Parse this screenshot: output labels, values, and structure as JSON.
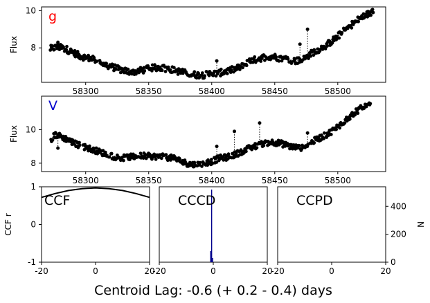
{
  "figure": {
    "footer": "Centroid Lag:  -0.6 (+  0.2 -  0.4) days"
  },
  "colors": {
    "g_label": "#ff0000",
    "v_label": "#0000cc",
    "points": "#000000",
    "cccd_hist": "#00008b"
  },
  "chart_data": [
    {
      "type": "scatter",
      "panel_label": "g",
      "xlabel": "",
      "ylabel": "Flux",
      "xlim": [
        58265,
        58538
      ],
      "ylim": [
        6.15,
        10.2
      ],
      "xticks": [
        58300,
        58350,
        58400,
        58450,
        58500
      ],
      "yticks": [
        8,
        10
      ],
      "connected": true,
      "curve": [
        [
          58272,
          7.95
        ],
        [
          58278,
          8.05
        ],
        [
          58284,
          7.95
        ],
        [
          58290,
          7.75
        ],
        [
          58296,
          7.55
        ],
        [
          58302,
          7.45
        ],
        [
          58308,
          7.35
        ],
        [
          58314,
          7.15
        ],
        [
          58320,
          7.0
        ],
        [
          58326,
          6.85
        ],
        [
          58332,
          6.75
        ],
        [
          58338,
          6.7
        ],
        [
          58345,
          6.8
        ],
        [
          58352,
          6.9
        ],
        [
          58358,
          6.95
        ],
        [
          58364,
          6.9
        ],
        [
          58370,
          6.8
        ],
        [
          58376,
          6.7
        ],
        [
          58382,
          6.6
        ],
        [
          58388,
          6.55
        ],
        [
          58394,
          6.55
        ],
        [
          58400,
          6.6
        ],
        [
          58406,
          6.65
        ],
        [
          58412,
          6.75
        ],
        [
          58418,
          6.85
        ],
        [
          58424,
          7.0
        ],
        [
          58430,
          7.25
        ],
        [
          58436,
          7.4
        ],
        [
          58442,
          7.5
        ],
        [
          58448,
          7.55
        ],
        [
          58454,
          7.45
        ],
        [
          58460,
          7.4
        ],
        [
          58466,
          7.3
        ],
        [
          58472,
          7.35
        ],
        [
          58476,
          7.55
        ],
        [
          58480,
          7.75
        ],
        [
          58486,
          7.95
        ],
        [
          58492,
          8.2
        ],
        [
          58498,
          8.5
        ],
        [
          58504,
          8.85
        ],
        [
          58510,
          9.2
        ],
        [
          58516,
          9.5
        ],
        [
          58522,
          9.75
        ],
        [
          58528,
          9.95
        ]
      ],
      "spikes": [
        [
          58278,
          8.3
        ],
        [
          58404,
          7.3
        ],
        [
          58470,
          8.2
        ],
        [
          58476,
          9.0
        ],
        [
          58528,
          9.9
        ]
      ]
    },
    {
      "type": "scatter",
      "panel_label": "V",
      "xlabel": "",
      "ylabel": "Flux",
      "xlim": [
        58265,
        58538
      ],
      "ylim": [
        7.5,
        12.0
      ],
      "xticks": [
        58300,
        58350,
        58400,
        58450,
        58500
      ],
      "yticks": [
        8,
        10
      ],
      "connected": true,
      "curve": [
        [
          58272,
          9.4
        ],
        [
          58276,
          9.7
        ],
        [
          58280,
          9.6
        ],
        [
          58286,
          9.4
        ],
        [
          58292,
          9.15
        ],
        [
          58298,
          9.0
        ],
        [
          58304,
          8.85
        ],
        [
          58310,
          8.7
        ],
        [
          58316,
          8.55
        ],
        [
          58322,
          8.4
        ],
        [
          58328,
          8.3
        ],
        [
          58334,
          8.35
        ],
        [
          58340,
          8.4
        ],
        [
          58346,
          8.45
        ],
        [
          58352,
          8.4
        ],
        [
          58358,
          8.4
        ],
        [
          58364,
          8.35
        ],
        [
          58370,
          8.3
        ],
        [
          58376,
          8.1
        ],
        [
          58382,
          7.95
        ],
        [
          58388,
          7.9
        ],
        [
          58394,
          8.0
        ],
        [
          58400,
          8.1
        ],
        [
          58406,
          8.3
        ],
        [
          58412,
          8.35
        ],
        [
          58418,
          8.5
        ],
        [
          58424,
          8.7
        ],
        [
          58430,
          8.9
        ],
        [
          58436,
          9.05
        ],
        [
          58442,
          9.2
        ],
        [
          58448,
          9.25
        ],
        [
          58454,
          9.2
        ],
        [
          58460,
          9.05
        ],
        [
          58466,
          8.95
        ],
        [
          58472,
          8.9
        ],
        [
          58478,
          9.2
        ],
        [
          58484,
          9.45
        ],
        [
          58490,
          9.65
        ],
        [
          58496,
          9.95
        ],
        [
          58502,
          10.3
        ],
        [
          58508,
          10.7
        ],
        [
          58514,
          11.05
        ],
        [
          58520,
          11.35
        ],
        [
          58526,
          11.6
        ]
      ],
      "spikes": [
        [
          58278,
          8.9
        ],
        [
          58404,
          9.0
        ],
        [
          58418,
          9.9
        ],
        [
          58438,
          10.4
        ],
        [
          58476,
          9.8
        ]
      ]
    },
    {
      "type": "line",
      "panel_label": "CCF",
      "xlabel": "",
      "ylabel": "CCF r",
      "xlim": [
        -20,
        20
      ],
      "ylim": [
        -1,
        1
      ],
      "xticks": [
        -20,
        0,
        20
      ],
      "yticks": [
        -1,
        0,
        1
      ],
      "x": [
        -20,
        -15,
        -10,
        -5,
        0,
        5,
        10,
        15,
        20
      ],
      "y": [
        0.72,
        0.82,
        0.9,
        0.95,
        0.97,
        0.95,
        0.9,
        0.82,
        0.72
      ]
    },
    {
      "type": "bar",
      "panel_label": "CCCD",
      "xlabel": "",
      "ylabel": "",
      "xlim": [
        -20,
        20
      ],
      "ylim": [
        0,
        540
      ],
      "xticks": [
        -20,
        0,
        20
      ],
      "x": [
        -1.0,
        -0.6,
        -0.2
      ],
      "values": [
        80,
        520,
        30
      ]
    },
    {
      "type": "bar",
      "panel_label": "CCPD",
      "xlabel": "",
      "ylabel": "N",
      "xlim": [
        -20,
        20
      ],
      "ylim": [
        0,
        540
      ],
      "xticks": [
        -20,
        0,
        20
      ],
      "yticks": [
        0,
        200,
        400
      ],
      "x": [],
      "values": []
    }
  ]
}
